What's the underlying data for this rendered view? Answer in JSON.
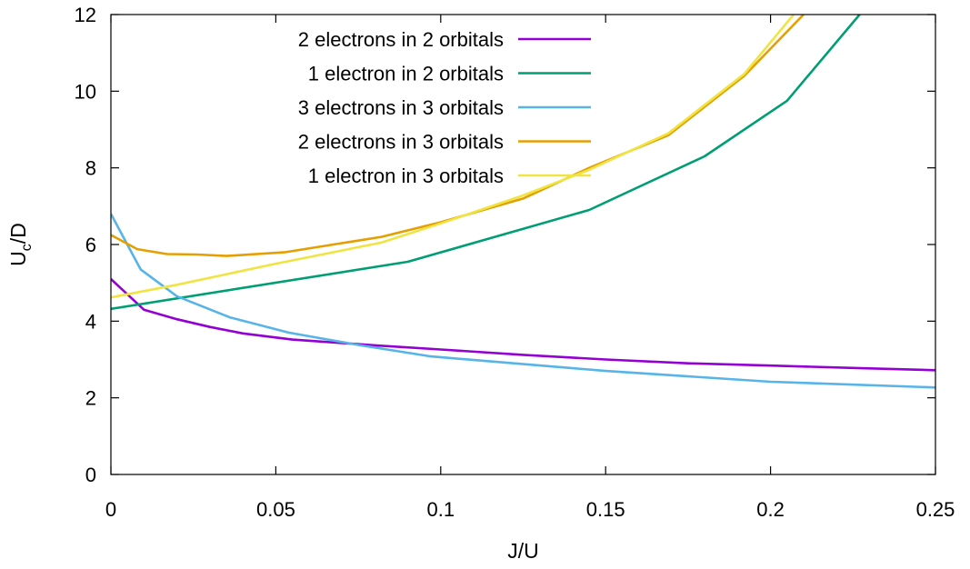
{
  "chart_data": {
    "type": "line",
    "title": "",
    "xlabel": "J/U",
    "ylabel": {
      "base": "U",
      "sub": "c",
      "rest": "/D"
    },
    "xlim": [
      0,
      0.25
    ],
    "ylim": [
      0,
      12
    ],
    "xticks": [
      {
        "value": 0,
        "label": "0"
      },
      {
        "value": 0.05,
        "label": "0.05"
      },
      {
        "value": 0.1,
        "label": "0.1"
      },
      {
        "value": 0.15,
        "label": "0.15"
      },
      {
        "value": 0.2,
        "label": "0.2"
      },
      {
        "value": 0.25,
        "label": "0.25"
      }
    ],
    "yticks": [
      {
        "value": 0,
        "label": "0"
      },
      {
        "value": 2,
        "label": "2"
      },
      {
        "value": 4,
        "label": "4"
      },
      {
        "value": 6,
        "label": "6"
      },
      {
        "value": 8,
        "label": "8"
      },
      {
        "value": 10,
        "label": "10"
      },
      {
        "value": 12,
        "label": "12"
      }
    ],
    "grid": false,
    "legend": "top-left",
    "series": [
      {
        "name": "2 electrons in 2 orbitals",
        "color": "#9400d3",
        "x": [
          0,
          0.01,
          0.02,
          0.03,
          0.04,
          0.055,
          0.08,
          0.1,
          0.125,
          0.15,
          0.175,
          0.2,
          0.225,
          0.25
        ],
        "y": [
          5.1,
          4.3,
          4.05,
          3.85,
          3.68,
          3.52,
          3.37,
          3.26,
          3.12,
          3.0,
          2.9,
          2.84,
          2.78,
          2.72
        ]
      },
      {
        "name": "1 electron in 2 orbitals",
        "color": "#009e73",
        "x": [
          0,
          0.09,
          0.145,
          0.18,
          0.205,
          0.227
        ],
        "y": [
          4.32,
          5.55,
          6.9,
          8.3,
          9.75,
          12.0
        ]
      },
      {
        "name": "3 electrons in 3 orbitals",
        "color": "#56b4e9",
        "x": [
          0,
          0.009,
          0.02,
          0.036,
          0.054,
          0.075,
          0.097,
          0.15,
          0.2,
          0.25
        ],
        "y": [
          6.8,
          5.35,
          4.65,
          4.1,
          3.7,
          3.38,
          3.08,
          2.7,
          2.42,
          2.27
        ]
      },
      {
        "name": "2 electrons in 3 orbitals",
        "color": "#e69f00",
        "x": [
          0,
          0.008,
          0.017,
          0.026,
          0.035,
          0.053,
          0.082,
          0.1,
          0.125,
          0.145,
          0.169,
          0.192,
          0.21
        ],
        "y": [
          6.25,
          5.88,
          5.75,
          5.74,
          5.7,
          5.8,
          6.2,
          6.58,
          7.2,
          8.0,
          8.85,
          10.4,
          12.0
        ]
      },
      {
        "name": "1 electron in 3 orbitals",
        "color": "#f0e442",
        "x": [
          0,
          0.02,
          0.05,
          0.082,
          0.1,
          0.125,
          0.145,
          0.169,
          0.192,
          0.207
        ],
        "y": [
          4.62,
          4.95,
          5.5,
          6.05,
          6.55,
          7.28,
          7.95,
          8.9,
          10.45,
          12.0
        ]
      }
    ]
  }
}
